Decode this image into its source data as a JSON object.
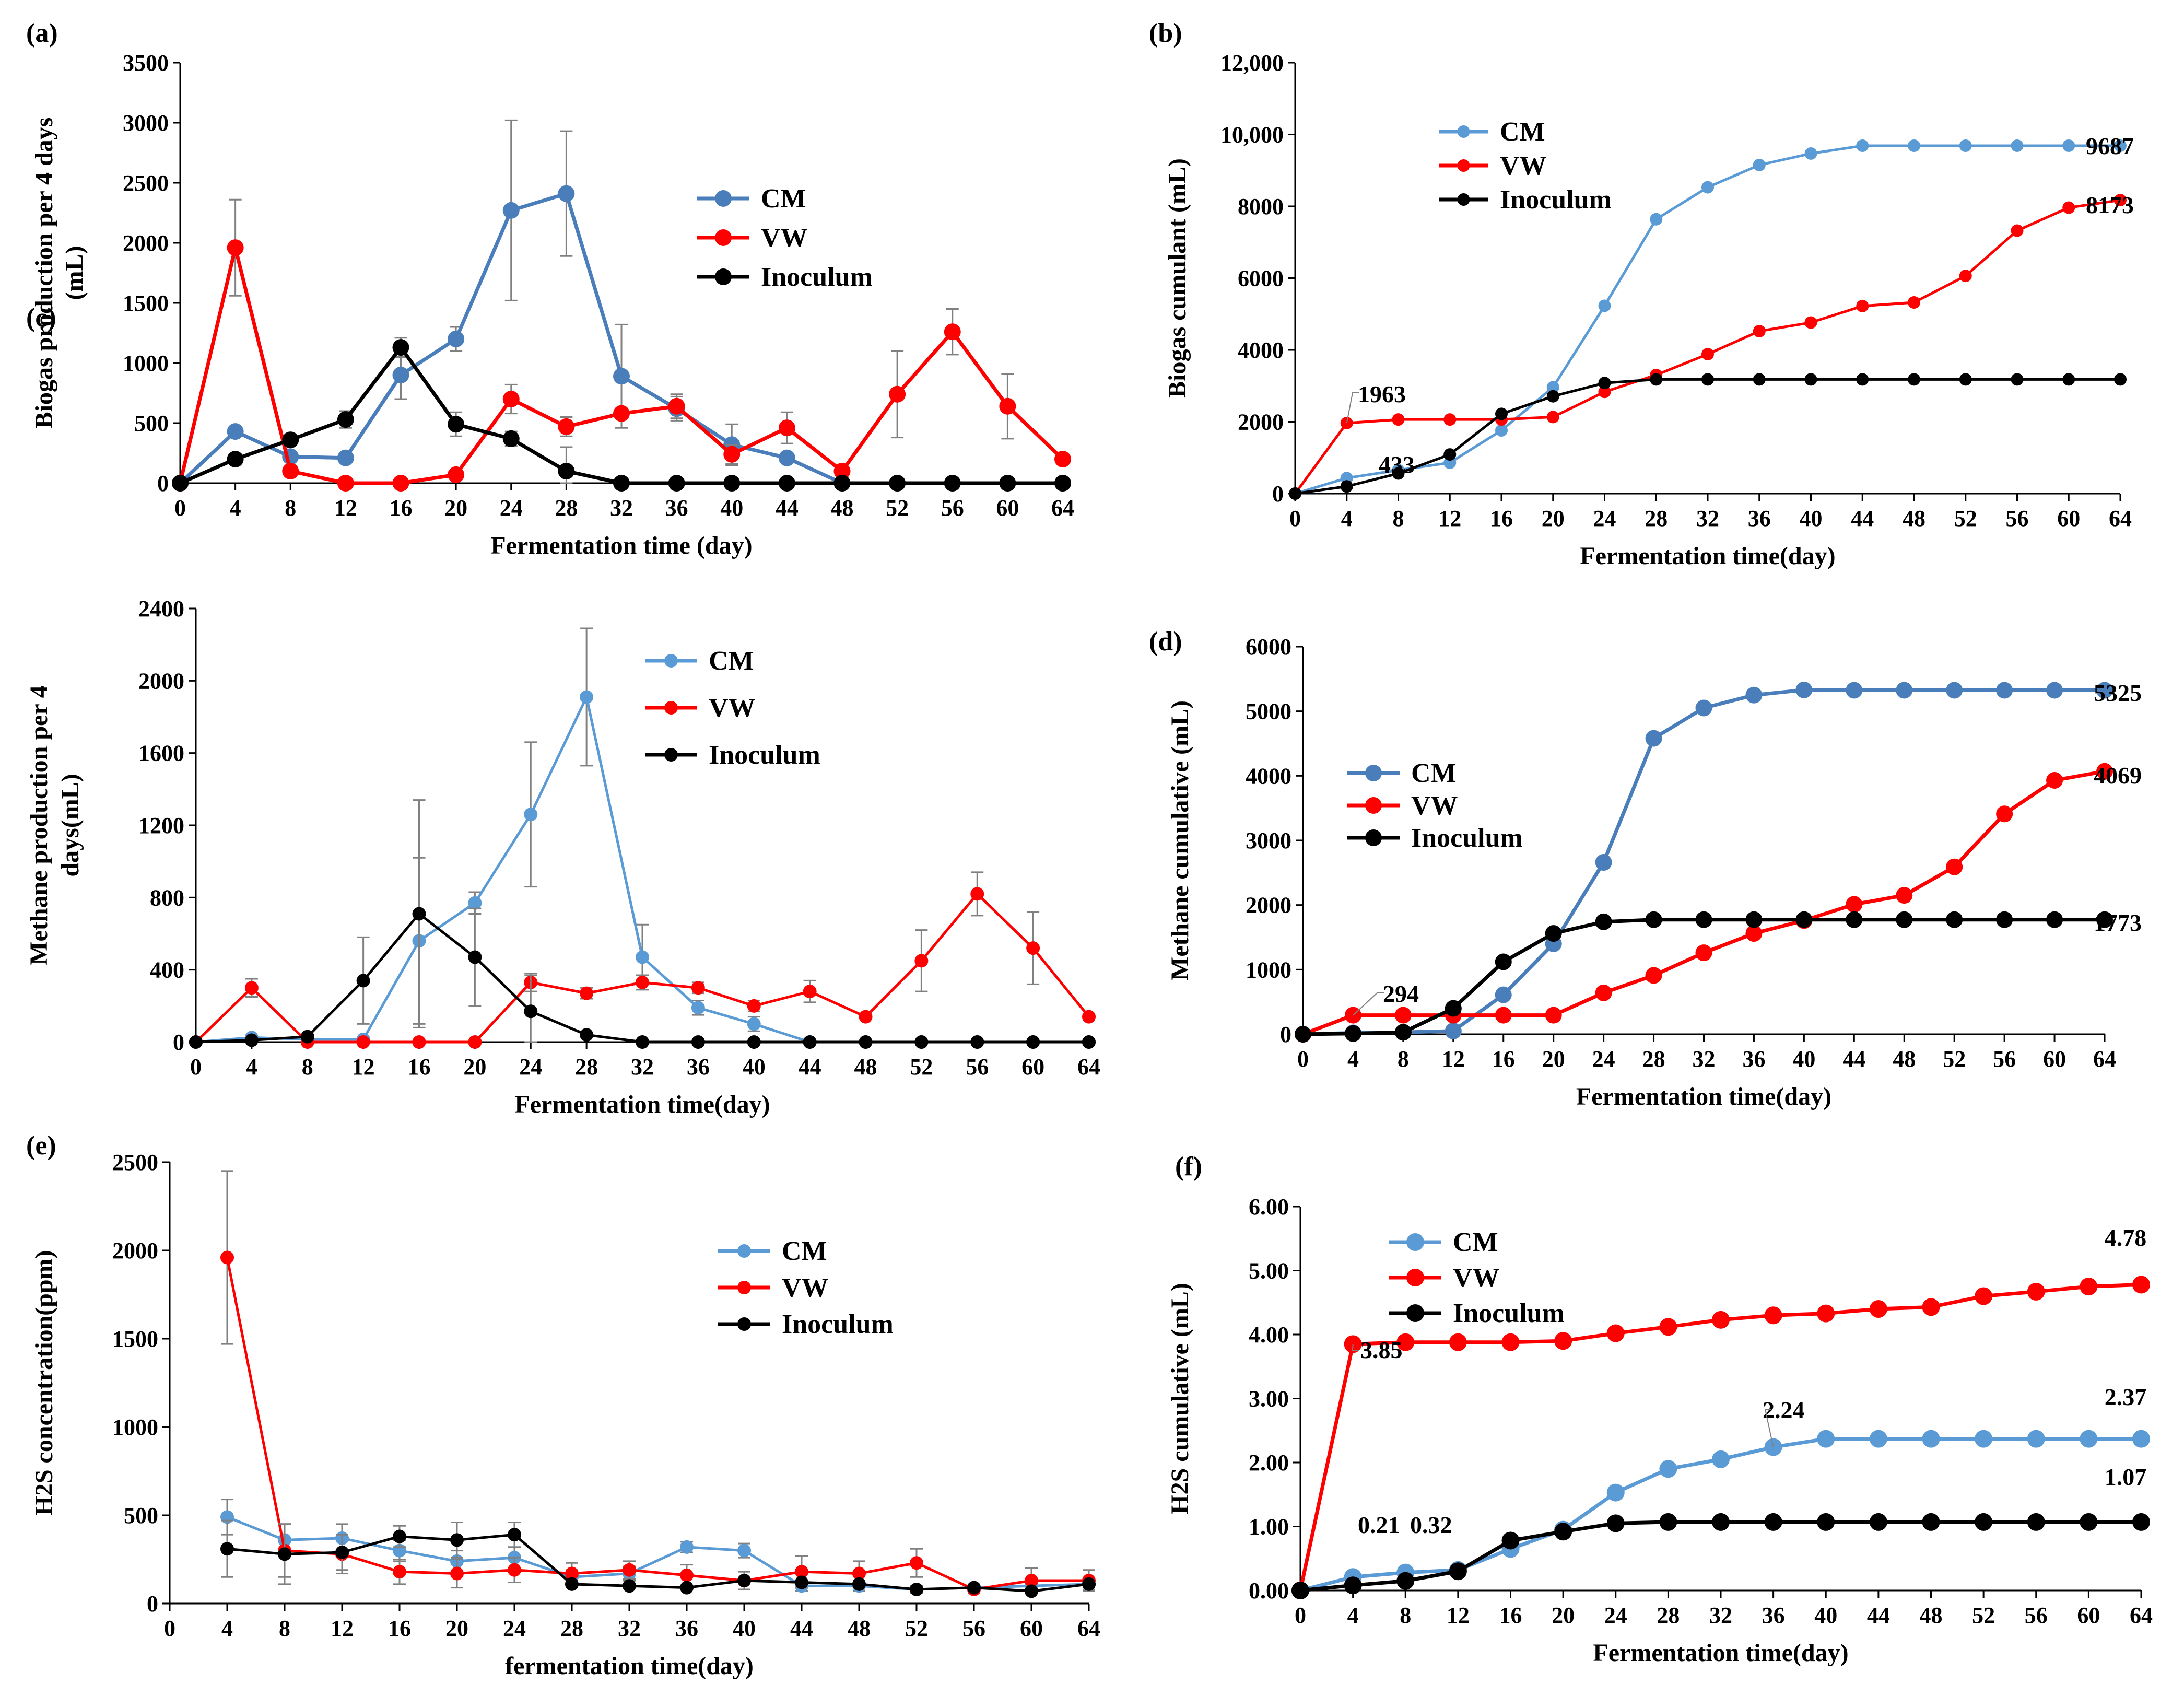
{
  "colors": {
    "cm_dark": "#4a7ebb",
    "cm_light": "#5b9bd5",
    "vw": "#ff0000",
    "inoculum": "#000000",
    "error": "#808080"
  },
  "chart_data": [
    {
      "panel": "(a)",
      "type": "line",
      "title": "",
      "xlabel": "Fermentation time (day)",
      "ylabel_lines": [
        "Biogas production per 4 days",
        "(mL)"
      ],
      "x": [
        0,
        4,
        8,
        12,
        16,
        20,
        24,
        28,
        32,
        36,
        40,
        44,
        48,
        52,
        56,
        60,
        64
      ],
      "xlim": [
        0,
        64
      ],
      "ylim": [
        0,
        3500
      ],
      "yticks": [
        0,
        500,
        1000,
        1500,
        2000,
        2500,
        3000,
        3500
      ],
      "ytick_labels": [
        "0",
        "500",
        "1000",
        "1500",
        "2000",
        "2500",
        "3000",
        "3500"
      ],
      "legend_position": "top-right",
      "series": [
        {
          "name": "CM",
          "color": "#4a7ebb",
          "values": [
            0,
            430,
            220,
            210,
            900,
            1200,
            2270,
            2410,
            890,
            620,
            320,
            210,
            0,
            0,
            0,
            0,
            0
          ],
          "errors": [
            0,
            0,
            0,
            0,
            200,
            100,
            750,
            520,
            430,
            100,
            170,
            0,
            0,
            0,
            0,
            0,
            0
          ]
        },
        {
          "name": "VW",
          "color": "#ff0000",
          "values": [
            0,
            1960,
            100,
            0,
            0,
            70,
            700,
            470,
            580,
            640,
            240,
            460,
            100,
            740,
            1260,
            640,
            200
          ],
          "errors": [
            0,
            400,
            0,
            0,
            0,
            0,
            120,
            80,
            0,
            100,
            80,
            130,
            0,
            360,
            190,
            270,
            0
          ]
        },
        {
          "name": "Inoculum",
          "color": "#000000",
          "values": [
            0,
            200,
            360,
            530,
            1130,
            490,
            370,
            100,
            0,
            0,
            0,
            0,
            0,
            0,
            0,
            0,
            0
          ],
          "errors": [
            0,
            0,
            0,
            70,
            80,
            100,
            60,
            200,
            0,
            0,
            0,
            0,
            0,
            0,
            0,
            0,
            0
          ]
        }
      ],
      "annotations": []
    },
    {
      "panel": "(b)",
      "type": "line",
      "title": "",
      "xlabel": "Fermentation time(day)",
      "ylabel_lines": [
        "Biogas cumulant (mL)"
      ],
      "x": [
        0,
        4,
        8,
        12,
        16,
        20,
        24,
        28,
        32,
        36,
        40,
        44,
        48,
        52,
        56,
        60,
        64
      ],
      "xlim": [
        0,
        64
      ],
      "ylim": [
        0,
        12000
      ],
      "yticks": [
        0,
        2000,
        4000,
        6000,
        8000,
        10000,
        12000
      ],
      "ytick_labels": [
        "0",
        "2000",
        "4000",
        "6000",
        "8000",
        "10,000",
        "12,000"
      ],
      "legend_position": "top-center",
      "series": [
        {
          "name": "CM",
          "color": "#5b9bd5",
          "values": [
            0,
            433,
            653,
            860,
            1760,
            2960,
            5230,
            7640,
            8530,
            9150,
            9470,
            9687,
            9687,
            9687,
            9687,
            9687,
            9687
          ]
        },
        {
          "name": "VW",
          "color": "#ff0000",
          "values": [
            0,
            1963,
            2063,
            2063,
            2063,
            2133,
            2833,
            3303,
            3883,
            4523,
            4763,
            5223,
            5323,
            6063,
            7323,
            7963,
            8173
          ]
        },
        {
          "name": "Inoculum",
          "color": "#000000",
          "values": [
            0,
            200,
            560,
            1090,
            2220,
            2710,
            3080,
            3180,
            3180,
            3180,
            3180,
            3180,
            3180,
            3180,
            3180,
            3180,
            3180
          ]
        }
      ],
      "annotations": [
        "1963",
        "433",
        "9687",
        "8173"
      ]
    },
    {
      "panel": "(c)",
      "type": "line",
      "title": "",
      "xlabel": "Fermentation time(day)",
      "ylabel_lines": [
        "Methane production per 4",
        "days(mL)"
      ],
      "x": [
        0,
        4,
        8,
        12,
        16,
        20,
        24,
        28,
        32,
        36,
        40,
        44,
        48,
        52,
        56,
        60,
        64
      ],
      "xlim": [
        0,
        64
      ],
      "ylim": [
        0,
        2400
      ],
      "yticks": [
        0,
        400,
        800,
        1200,
        1600,
        2000,
        2400
      ],
      "ytick_labels": [
        "0",
        "400",
        "800",
        "1200",
        "1600",
        "2000",
        "2400"
      ],
      "legend_position": "top-center",
      "series": [
        {
          "name": "CM",
          "color": "#5b9bd5",
          "values": [
            0,
            25,
            15,
            15,
            560,
            770,
            1260,
            1910,
            470,
            190,
            100,
            0,
            0,
            0,
            0,
            0,
            0
          ],
          "errors": [
            0,
            0,
            0,
            0,
            460,
            60,
            400,
            380,
            180,
            40,
            40,
            0,
            0,
            0,
            0,
            0,
            0
          ]
        },
        {
          "name": "VW",
          "color": "#ff0000",
          "values": [
            0,
            300,
            0,
            0,
            0,
            0,
            330,
            270,
            330,
            300,
            200,
            280,
            140,
            450,
            820,
            520,
            140
          ],
          "errors": [
            0,
            50,
            0,
            0,
            0,
            0,
            50,
            30,
            40,
            30,
            30,
            60,
            0,
            170,
            120,
            200,
            0
          ]
        },
        {
          "name": "Inoculum",
          "color": "#000000",
          "values": [
            0,
            10,
            30,
            340,
            710,
            470,
            170,
            40,
            0,
            0,
            0,
            0,
            0,
            0,
            0,
            0,
            0
          ],
          "errors": [
            0,
            0,
            0,
            240,
            630,
            270,
            200,
            0,
            0,
            0,
            0,
            0,
            0,
            0,
            0,
            0,
            0
          ]
        }
      ],
      "annotations": []
    },
    {
      "panel": "(d)",
      "type": "line",
      "title": "",
      "xlabel": "Fermentation time(day)",
      "ylabel_lines": [
        "Methane cumulative (mL)"
      ],
      "x": [
        0,
        4,
        8,
        12,
        16,
        20,
        24,
        28,
        32,
        36,
        40,
        44,
        48,
        52,
        56,
        60,
        64
      ],
      "xlim": [
        0,
        64
      ],
      "ylim": [
        0,
        6000
      ],
      "yticks": [
        0,
        1000,
        2000,
        3000,
        4000,
        5000,
        6000
      ],
      "ytick_labels": [
        "0",
        "1000",
        "2000",
        "3000",
        "4000",
        "5000",
        "6000"
      ],
      "legend_position": "center-left",
      "series": [
        {
          "name": "CM",
          "color": "#4a7ebb",
          "values": [
            0,
            20,
            30,
            50,
            610,
            1400,
            2660,
            4580,
            5050,
            5250,
            5330,
            5325,
            5325,
            5325,
            5325,
            5325,
            5325
          ]
        },
        {
          "name": "VW",
          "color": "#ff0000",
          "values": [
            0,
            294,
            294,
            294,
            294,
            294,
            640,
            910,
            1260,
            1560,
            1760,
            2010,
            2150,
            2590,
            3410,
            3930,
            4069
          ]
        },
        {
          "name": "Inoculum",
          "color": "#000000",
          "values": [
            0,
            10,
            30,
            400,
            1120,
            1560,
            1740,
            1773,
            1773,
            1773,
            1773,
            1773,
            1773,
            1773,
            1773,
            1773,
            1773
          ]
        }
      ],
      "annotations": [
        "294",
        "5325",
        "4069",
        "1773"
      ]
    },
    {
      "panel": "(e)",
      "type": "line",
      "title": "",
      "xlabel": "fermentation time(day)",
      "ylabel_lines": [
        "H2S concentration(ppm)"
      ],
      "x": [
        4,
        8,
        12,
        16,
        20,
        24,
        28,
        32,
        36,
        40,
        44,
        48,
        52,
        56,
        60,
        64
      ],
      "xlim": [
        0,
        64
      ],
      "ylim": [
        0,
        2500
      ],
      "yticks": [
        0,
        500,
        1000,
        1500,
        2000,
        2500
      ],
      "ytick_labels": [
        "0",
        "500",
        "1000",
        "1500",
        "2000",
        "2500"
      ],
      "legend_position": "center-right",
      "series": [
        {
          "name": "CM",
          "color": "#5b9bd5",
          "values": [
            490,
            360,
            370,
            300,
            240,
            260,
            150,
            170,
            320,
            300,
            100,
            100,
            80,
            90,
            100,
            110
          ],
          "errors": [
            100,
            90,
            80,
            60,
            60,
            60,
            40,
            40,
            30,
            40,
            30,
            30,
            20,
            20,
            20,
            30
          ]
        },
        {
          "name": "VW",
          "color": "#ff0000",
          "values": [
            1960,
            300,
            280,
            180,
            170,
            190,
            170,
            190,
            160,
            130,
            180,
            170,
            230,
            80,
            130,
            130
          ],
          "errors": [
            490,
            150,
            110,
            70,
            80,
            70,
            60,
            50,
            60,
            50,
            90,
            70,
            80,
            20,
            70,
            60
          ]
        },
        {
          "name": "Inoculum",
          "color": "#000000",
          "values": [
            310,
            280,
            290,
            380,
            360,
            390,
            110,
            100,
            90,
            130,
            120,
            110,
            80,
            90,
            70,
            110
          ],
          "errors": [
            160,
            170,
            100,
            60,
            100,
            70,
            0,
            0,
            0,
            0,
            0,
            0,
            0,
            0,
            0,
            0
          ]
        }
      ],
      "annotations": []
    },
    {
      "panel": "(f)",
      "type": "line",
      "title": "",
      "xlabel": "Fermentation time(day)",
      "ylabel_lines": [
        "H2S cumulative (mL)"
      ],
      "x": [
        0,
        4,
        8,
        12,
        16,
        20,
        24,
        28,
        32,
        36,
        40,
        44,
        48,
        52,
        56,
        60,
        64
      ],
      "xlim": [
        0,
        64
      ],
      "ylim": [
        0,
        6
      ],
      "yticks": [
        0,
        1,
        2,
        3,
        4,
        5,
        6
      ],
      "ytick_labels": [
        "0.00",
        "1.00",
        "2.00",
        "3.00",
        "4.00",
        "5.00",
        "6.00"
      ],
      "legend_position": "top-left",
      "series": [
        {
          "name": "CM",
          "color": "#5b9bd5",
          "values": [
            0,
            0.21,
            0.28,
            0.32,
            0.65,
            0.95,
            1.53,
            1.9,
            2.05,
            2.24,
            2.37,
            2.37,
            2.37,
            2.37,
            2.37,
            2.37,
            2.37
          ]
        },
        {
          "name": "VW",
          "color": "#ff0000",
          "values": [
            0,
            3.85,
            3.88,
            3.88,
            3.88,
            3.9,
            4.02,
            4.12,
            4.23,
            4.3,
            4.33,
            4.4,
            4.43,
            4.6,
            4.67,
            4.75,
            4.78
          ]
        },
        {
          "name": "Inoculum",
          "color": "#000000",
          "values": [
            0,
            0.08,
            0.15,
            0.3,
            0.78,
            0.92,
            1.05,
            1.07,
            1.07,
            1.07,
            1.07,
            1.07,
            1.07,
            1.07,
            1.07,
            1.07,
            1.07
          ]
        }
      ],
      "annotations": [
        "3.85",
        "0.21",
        "0.32",
        "2.24",
        "4.78",
        "2.37",
        "1.07"
      ]
    }
  ]
}
